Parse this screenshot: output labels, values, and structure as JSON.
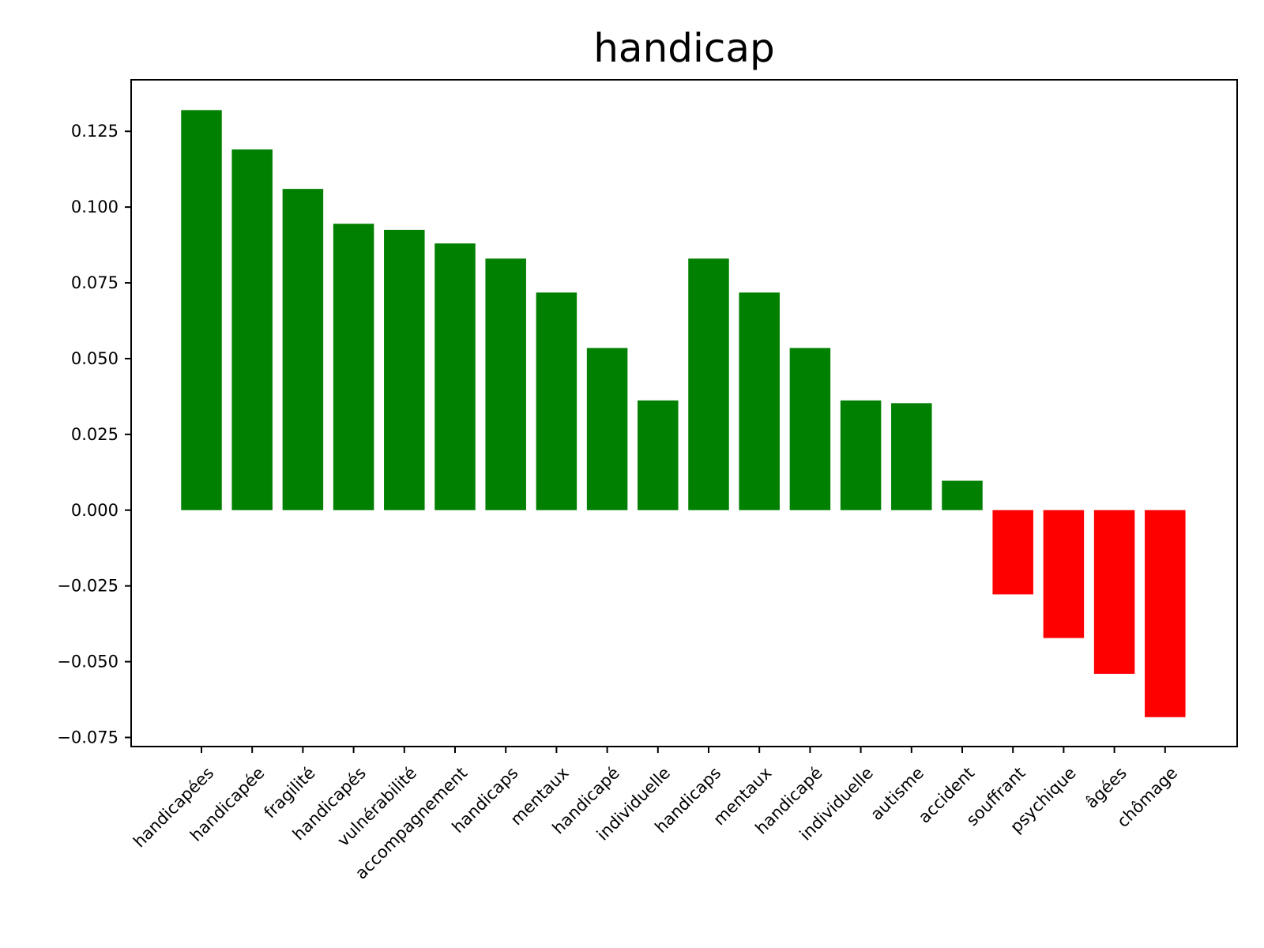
{
  "chart_data": {
    "type": "bar",
    "title": "handicap",
    "xlabel": "",
    "ylabel": "",
    "categories": [
      "handicapées",
      "handicapée",
      "fragilité",
      "handicapés",
      "vulnérabilité",
      "accompagnement",
      "handicaps",
      "mentaux",
      "handicapé",
      "individuelle",
      "handicaps",
      "mentaux",
      "handicapé",
      "individuelle",
      "autisme",
      "accident",
      "souffrant",
      "psychique",
      "âgées",
      "chômage"
    ],
    "values": [
      0.132,
      0.119,
      0.106,
      0.0945,
      0.0925,
      0.088,
      0.083,
      0.0718,
      0.0535,
      0.0362,
      0.083,
      0.0718,
      0.0535,
      0.0362,
      0.0353,
      0.0097,
      -0.0278,
      -0.0422,
      -0.054,
      -0.0683
    ],
    "ylim": [
      -0.078,
      0.142
    ],
    "yticks": [
      -0.075,
      -0.05,
      -0.025,
      0.0,
      0.025,
      0.05,
      0.075,
      0.1,
      0.125
    ],
    "ytick_labels": [
      "−0.075",
      "−0.050",
      "−0.025",
      "0.000",
      "0.025",
      "0.050",
      "0.075",
      "0.100",
      "0.125"
    ],
    "colors": {
      "positive": "#008000",
      "negative": "#ff0000"
    },
    "grid": false,
    "legend": "none"
  }
}
